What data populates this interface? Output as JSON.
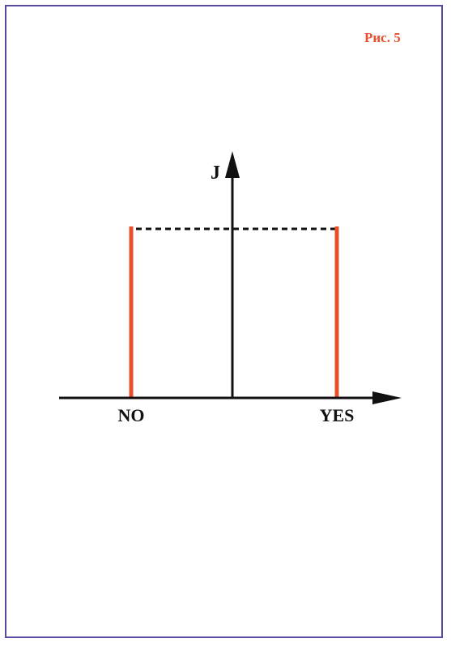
{
  "figure": {
    "label": "Рис. 5",
    "label_color": "#e8502a",
    "frame_color": "#5b4aa0"
  },
  "diagram": {
    "y_axis_label": "J",
    "x_label_left": "NO",
    "x_label_right": "YES",
    "bar_color": "#e8502a",
    "axis_color": "#111111"
  }
}
